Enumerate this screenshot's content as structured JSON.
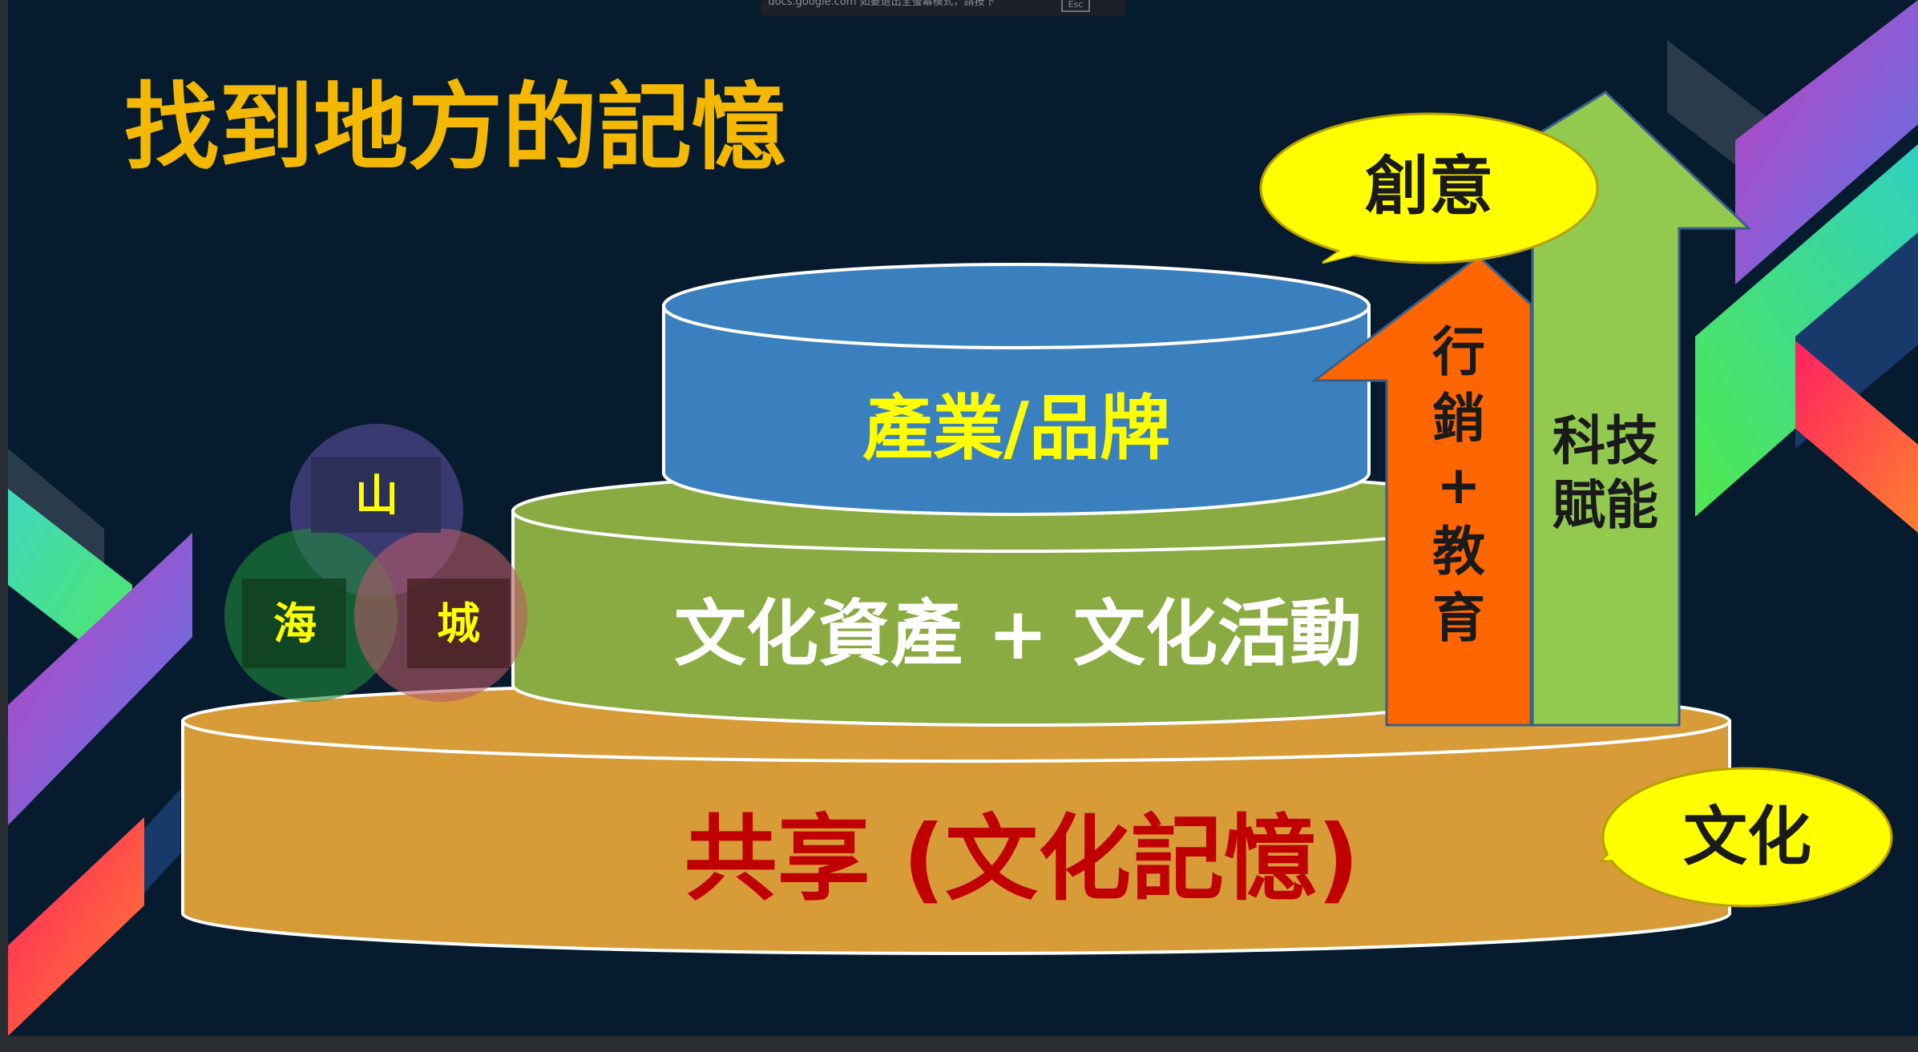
{
  "fullscreen_notice": {
    "text": "docs.google.com 如要退出全螢幕模式，請按下",
    "key": "Esc"
  },
  "slide": {
    "title": "找到地方的記憶",
    "tiers": {
      "top": "產業/品牌",
      "middle": "文化資產 + 文化活動",
      "bottom": "共享 (文化記憶)"
    },
    "circles": {
      "mountain": "山",
      "sea": "海",
      "city": "城"
    },
    "arrows": {
      "orange_lines": [
        "行",
        "銷",
        "+",
        "教",
        "育"
      ],
      "green_lines": [
        "科技",
        "賦能"
      ]
    },
    "callouts": {
      "creativity": "創意",
      "culture": "文化"
    },
    "colors": {
      "background": "#061c2e",
      "title": "#f5b800",
      "top_tier": "#3b80be",
      "middle_tier": "#8aab41",
      "bottom_tier": "#d79b37",
      "orange_arrow": "#ff6600",
      "green_arrow": "#92c94f",
      "callout": "#ffff00",
      "bottom_text": "#c00000"
    }
  }
}
